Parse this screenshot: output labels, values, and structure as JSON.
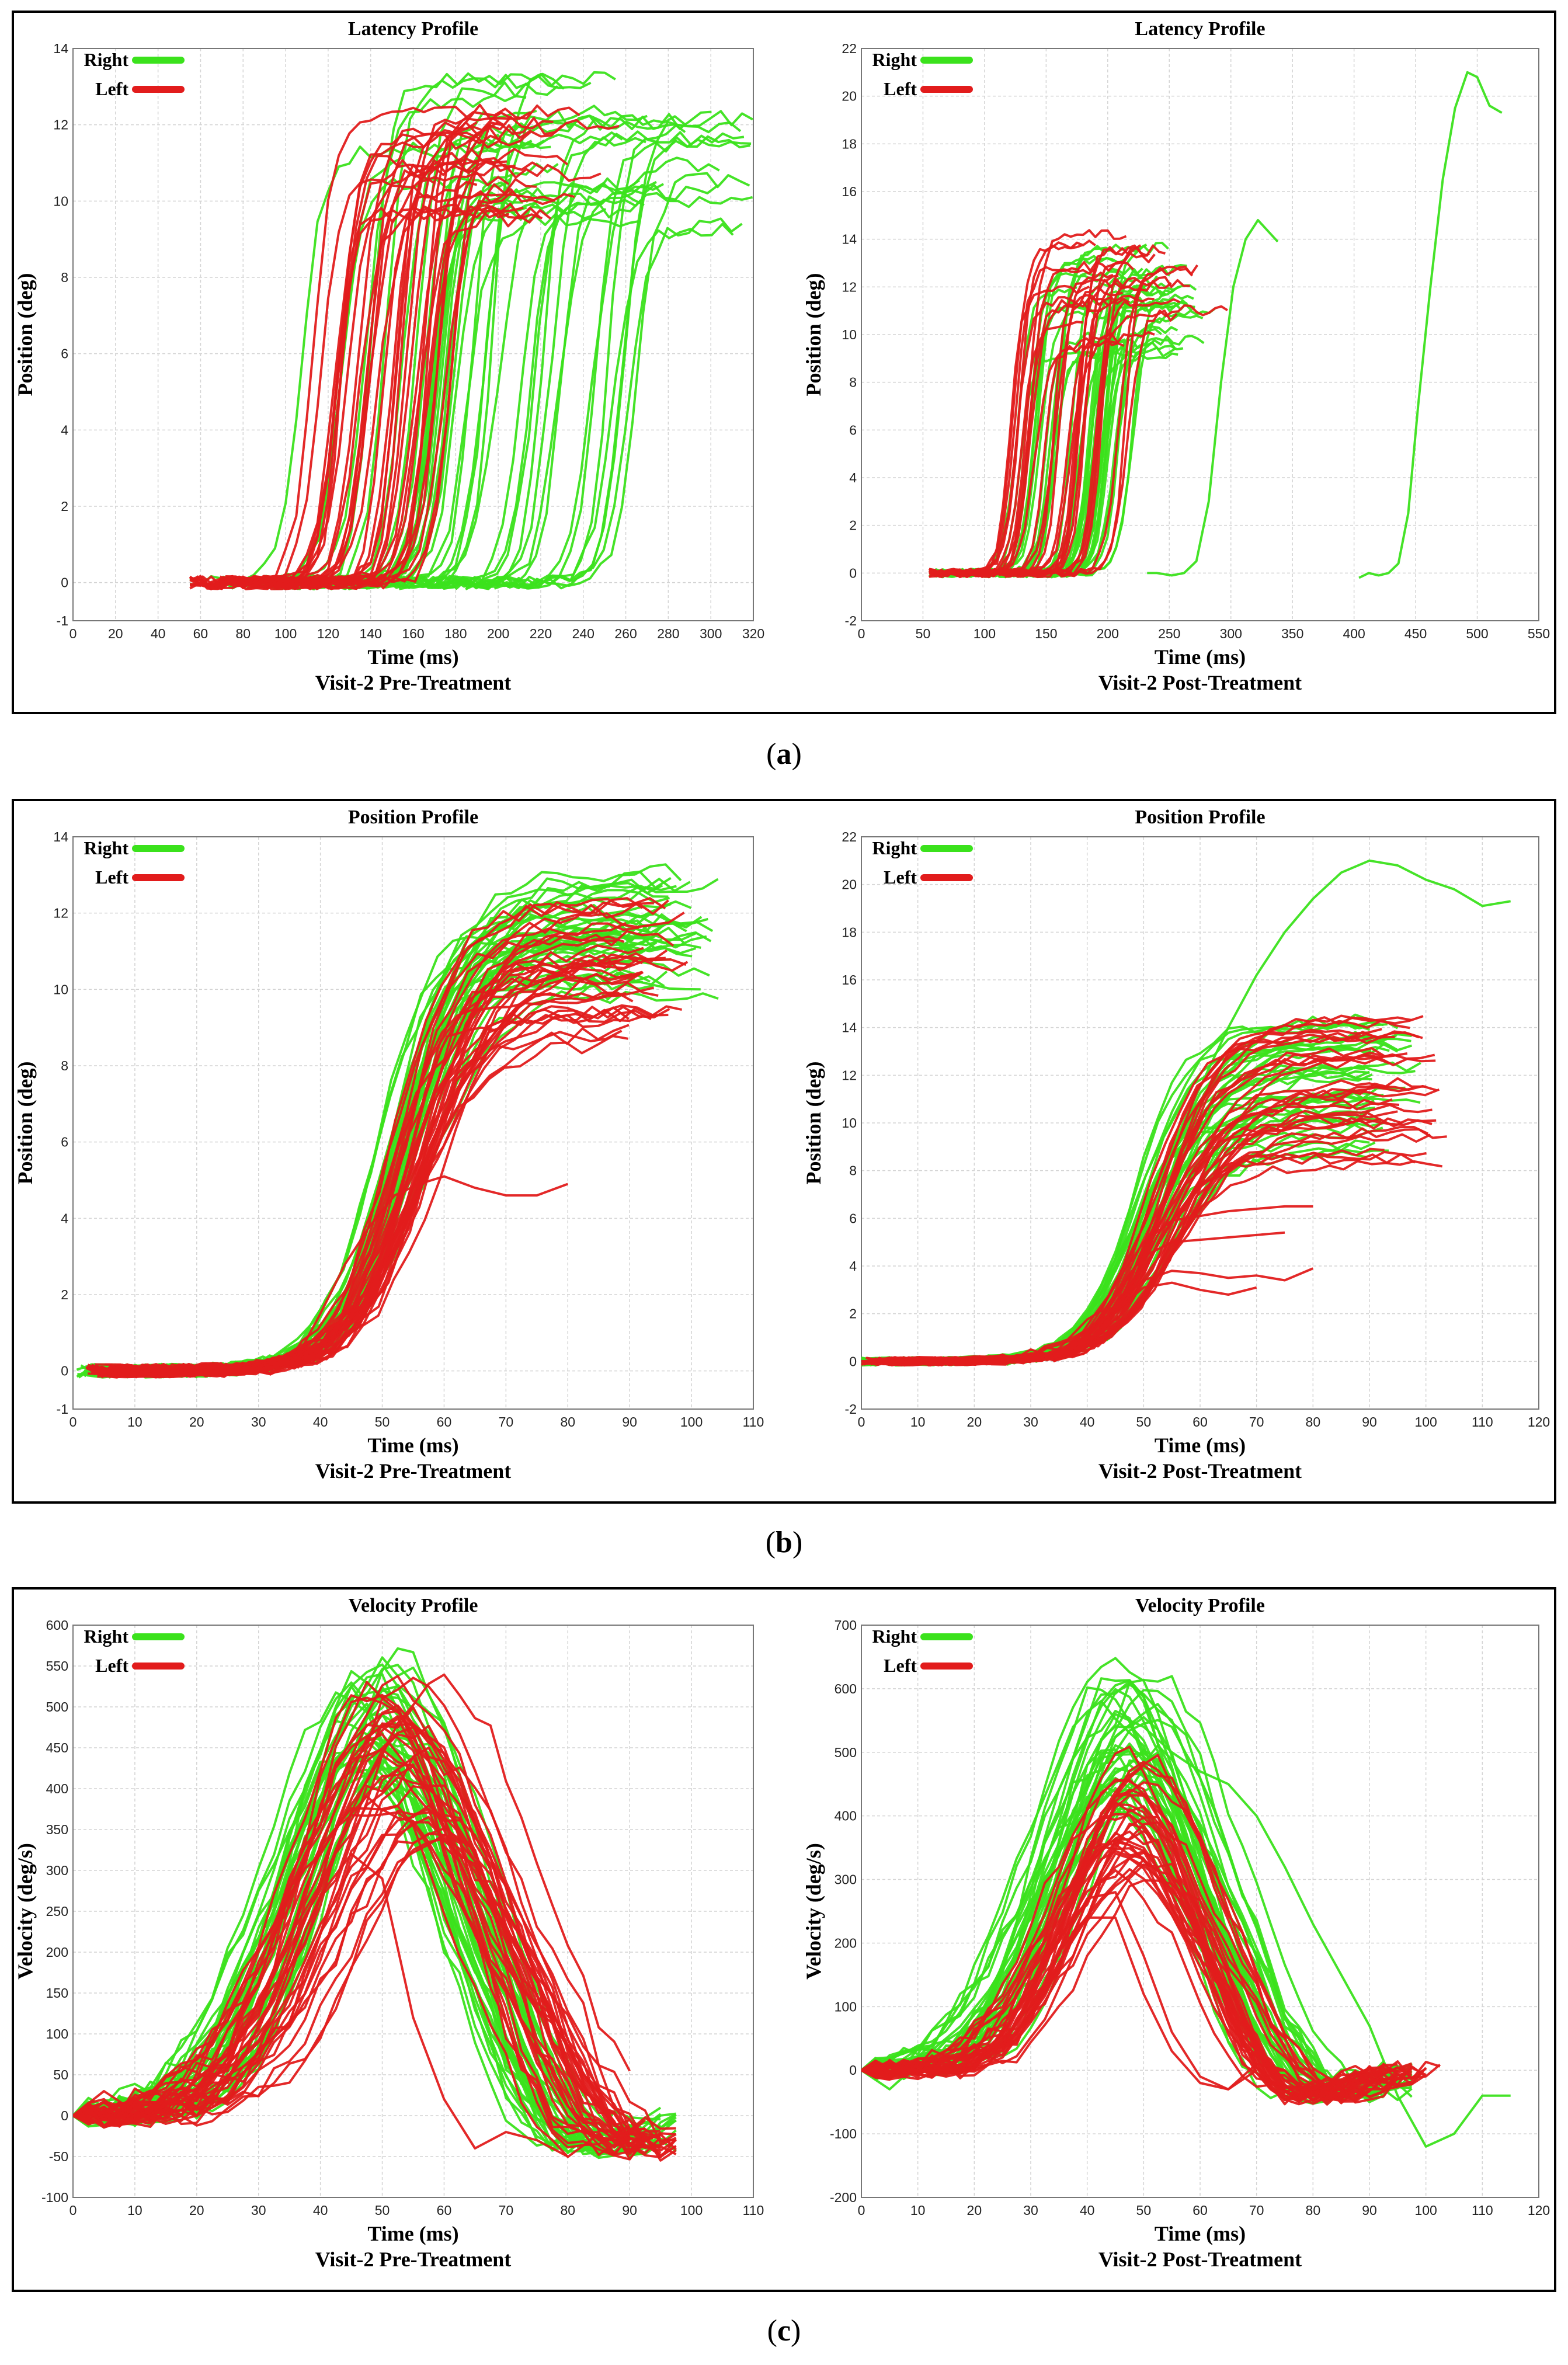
{
  "panels": [
    {
      "id": "a",
      "label": "a"
    },
    {
      "id": "b",
      "label": "b"
    },
    {
      "id": "c",
      "label": "c"
    }
  ],
  "colors": {
    "right": "#3be21c",
    "left": "#e21c1c",
    "grid": "#d4d4d4",
    "axis": "#777777"
  },
  "chart_data": [
    {
      "panel": "a",
      "side": "left",
      "type": "line",
      "title": "Latency Profile",
      "xlabel": "Time (ms)",
      "ylabel": "Position (deg)",
      "caption": "Visit-2 Pre-Treatment",
      "xlim": [
        0,
        320
      ],
      "ylim": [
        -1,
        14
      ],
      "xticks": [
        0,
        20,
        40,
        60,
        80,
        100,
        120,
        140,
        160,
        180,
        200,
        220,
        240,
        260,
        280,
        300,
        320
      ],
      "yticks": [
        -1,
        0,
        2,
        4,
        6,
        8,
        10,
        12,
        14
      ],
      "yticklabels": [
        "-1",
        "0",
        "2",
        "4",
        "6",
        "8",
        "10",
        "12",
        "14"
      ],
      "legend": [
        {
          "name": "Right",
          "color": "right"
        },
        {
          "name": "Left",
          "color": "left"
        }
      ],
      "series": [
        {
          "name": "Right",
          "count": 42,
          "onset_range": [
            85,
            260
          ],
          "rise_ms": 34,
          "plateau_range": [
            9.2,
            13.2
          ],
          "tail_ms": 60,
          "baseline": 0
        },
        {
          "name": "Left",
          "count": 34,
          "onset_range": [
            90,
            165
          ],
          "rise_ms": 32,
          "plateau_range": [
            9.5,
            12.4
          ],
          "tail_ms": 50,
          "baseline": 0
        }
      ]
    },
    {
      "panel": "a",
      "side": "right",
      "type": "line",
      "title": "Latency Profile",
      "xlabel": "Time (ms)",
      "ylabel": "Position (deg)",
      "caption": "Visit-2 Post-Treatment",
      "xlim": [
        0,
        550
      ],
      "ylim": [
        -2,
        22
      ],
      "xticks": [
        0,
        50,
        100,
        150,
        200,
        250,
        300,
        350,
        400,
        450,
        500,
        550
      ],
      "yticks": [
        -2,
        0,
        2,
        4,
        6,
        8,
        10,
        12,
        14,
        16,
        18,
        20,
        22
      ],
      "yticklabels": [
        "-2",
        "0",
        "2",
        "4",
        "6",
        "8",
        "10",
        "12",
        "14",
        "16",
        "18",
        "20",
        "22"
      ],
      "legend": [
        {
          "name": "Right",
          "color": "right"
        },
        {
          "name": "Left",
          "color": "left"
        }
      ],
      "series": [
        {
          "name": "Right",
          "count": 38,
          "onset_range": [
            105,
            205
          ],
          "rise_ms": 38,
          "plateau_range": [
            9.0,
            13.8
          ],
          "tail_ms": 45,
          "baseline": 0,
          "extra": [
            {
              "x": [
                232,
                240,
                252,
                262,
                272,
                282,
                292,
                302,
                312,
                322,
                338
              ],
              "y": [
                0,
                0,
                -0.1,
                0,
                0.5,
                3,
                8,
                12,
                14,
                14.8,
                13.9
              ]
            },
            {
              "x": [
                404,
                412,
                420,
                428,
                436,
                444,
                452,
                462,
                472,
                482,
                492,
                500,
                510,
                520
              ],
              "y": [
                -0.2,
                0,
                -0.1,
                0,
                0.4,
                2.5,
                7,
                12,
                16.5,
                19.5,
                21,
                20.8,
                19.6,
                19.3
              ]
            }
          ]
        },
        {
          "name": "Left",
          "count": 30,
          "onset_range": [
            100,
            200
          ],
          "rise_ms": 36,
          "plateau_range": [
            9.5,
            14.4
          ],
          "tail_ms": 45,
          "baseline": 0
        }
      ]
    },
    {
      "panel": "b",
      "side": "left",
      "type": "line",
      "title": "Position Profile",
      "xlabel": "Time (ms)",
      "ylabel": "Position (deg)",
      "caption": "Visit-2 Pre-Treatment",
      "xlim": [
        0,
        110
      ],
      "ylim": [
        -1,
        14
      ],
      "xticks": [
        0,
        10,
        20,
        30,
        40,
        50,
        60,
        70,
        80,
        90,
        100,
        110
      ],
      "yticks": [
        -1,
        0,
        2,
        4,
        6,
        8,
        10,
        12,
        14
      ],
      "yticklabels": [
        "-1",
        "0",
        "2",
        "4",
        "6",
        "8",
        "10",
        "12",
        "14"
      ],
      "legend": [
        {
          "name": "Right",
          "color": "right"
        },
        {
          "name": "Left",
          "color": "left"
        }
      ],
      "series": [
        {
          "name": "Right",
          "count": 40,
          "onset_range": [
            32,
            37
          ],
          "rise_ms": 36,
          "plateau_range": [
            9.6,
            13.1
          ],
          "end_range": [
            92,
            105
          ],
          "baseline": 0
        },
        {
          "name": "Left",
          "count": 36,
          "onset_range": [
            34,
            39
          ],
          "rise_ms": 37,
          "plateau_range": [
            8.5,
            12.3
          ],
          "end_range": [
            88,
            100
          ],
          "baseline": 0,
          "extra": [
            {
              "x": [
                33,
                36,
                40,
                44,
                48,
                52,
                56,
                60,
                65,
                70,
                75,
                80
              ],
              "y": [
                0,
                0.3,
                1.5,
                2.8,
                3.8,
                4.6,
                4.9,
                5.1,
                4.8,
                4.6,
                4.6,
                4.9
              ]
            }
          ]
        }
      ]
    },
    {
      "panel": "b",
      "side": "right",
      "type": "line",
      "title": "Position Profile",
      "xlabel": "Time (ms)",
      "ylabel": "Position (deg)",
      "caption": "Visit-2 Post-Treatment",
      "xlim": [
        0,
        120
      ],
      "ylim": [
        -2,
        22
      ],
      "xticks": [
        0,
        10,
        20,
        30,
        40,
        50,
        60,
        70,
        80,
        90,
        100,
        110,
        120
      ],
      "yticks": [
        -2,
        0,
        2,
        4,
        6,
        8,
        10,
        12,
        14,
        16,
        18,
        20,
        22
      ],
      "yticklabels": [
        "-2",
        "0",
        "2",
        "4",
        "6",
        "8",
        "10",
        "12",
        "14",
        "16",
        "18",
        "20",
        "22"
      ],
      "legend": [
        {
          "name": "Right",
          "color": "right"
        },
        {
          "name": "Left",
          "color": "left"
        }
      ],
      "series": [
        {
          "name": "Right",
          "count": 38,
          "onset_range": [
            30,
            36
          ],
          "rise_ms": 38,
          "plateau_range": [
            8.5,
            14.5
          ],
          "end_range": [
            90,
            100
          ],
          "baseline": 0,
          "extra": [
            {
              "x": [
                30,
                35,
                40,
                45,
                50,
                55,
                60,
                65,
                70,
                75,
                80,
                85,
                90,
                95,
                100,
                105,
                110,
                115
              ],
              "y": [
                0,
                0.4,
                2,
                4,
                6.5,
                9,
                11.5,
                14,
                16.2,
                18,
                19.4,
                20.5,
                21,
                20.8,
                20.2,
                19.8,
                19.1,
                19.3
              ]
            }
          ]
        },
        {
          "name": "Left",
          "count": 34,
          "onset_range": [
            31,
            37
          ],
          "rise_ms": 38,
          "plateau_range": [
            8.2,
            14.4
          ],
          "end_range": [
            92,
            105
          ],
          "baseline": 0,
          "extra": [
            {
              "x": [
                34,
                38,
                42,
                46,
                50,
                55,
                60,
                65,
                70,
                75,
                80
              ],
              "y": [
                0,
                0.6,
                2,
                3.6,
                5,
                5.9,
                6.1,
                6.3,
                6.4,
                6.5,
                6.5
              ]
            },
            {
              "x": [
                34,
                38,
                42,
                46,
                50,
                55,
                60,
                65,
                70,
                75
              ],
              "y": [
                0,
                0.5,
                1.8,
                3.2,
                4.4,
                5,
                5.1,
                5.2,
                5.3,
                5.4
              ]
            },
            {
              "x": [
                34,
                38,
                42,
                46,
                50,
                55,
                60,
                65,
                70,
                75,
                80
              ],
              "y": [
                0,
                0.5,
                1.5,
                2.6,
                3.4,
                3.8,
                3.7,
                3.5,
                3.6,
                3.4,
                3.9
              ]
            },
            {
              "x": [
                34,
                38,
                42,
                46,
                50,
                55,
                60,
                65,
                70
              ],
              "y": [
                0,
                0.4,
                1.3,
                2.3,
                3.1,
                3.3,
                3.0,
                2.8,
                3.1
              ]
            }
          ]
        }
      ]
    },
    {
      "panel": "c",
      "side": "left",
      "type": "line",
      "title": "Velocity Profile",
      "xlabel": "Time (ms)",
      "ylabel": "Velocity (deg/s)",
      "caption": "Visit-2 Pre-Treatment",
      "xlim": [
        0,
        110
      ],
      "ylim": [
        -100,
        600
      ],
      "xticks": [
        0,
        10,
        20,
        30,
        40,
        50,
        60,
        70,
        80,
        90,
        100,
        110
      ],
      "yticks": [
        -100,
        -50,
        0,
        50,
        100,
        150,
        200,
        250,
        300,
        350,
        400,
        450,
        500,
        550,
        600
      ],
      "yticklabels": [
        "-100",
        "-50",
        "0",
        "50",
        "100",
        "150",
        "200",
        "250",
        "300",
        "350",
        "400",
        "450",
        "500",
        "550",
        "600"
      ],
      "legend": [
        {
          "name": "Right",
          "color": "right"
        },
        {
          "name": "Left",
          "color": "left"
        }
      ],
      "series": [
        {
          "name": "Right",
          "count": 40,
          "peak_time_range": [
            44,
            55
          ],
          "peak_range": [
            400,
            570
          ],
          "width_ms": 13,
          "onset_range": [
            24,
            29
          ],
          "end_range": [
            90,
            100
          ],
          "baseline": 0
        },
        {
          "name": "Left",
          "count": 36,
          "peak_time_range": [
            48,
            60
          ],
          "peak_range": [
            330,
            535
          ],
          "width_ms": 14,
          "onset_range": [
            25,
            30
          ],
          "end_range": [
            88,
            100
          ],
          "baseline": 0,
          "extra": [
            {
              "x": [
                0,
                5,
                10,
                15,
                20,
                25,
                30,
                35,
                40,
                45,
                50,
                55,
                60,
                65,
                70,
                75,
                80
              ],
              "y": [
                0,
                30,
                5,
                -10,
                0,
                20,
                80,
                180,
                270,
                320,
                290,
                120,
                20,
                -40,
                -20,
                -30,
                -50
              ]
            }
          ]
        }
      ]
    },
    {
      "panel": "c",
      "side": "right",
      "type": "line",
      "title": "Velocity Profile",
      "xlabel": "Time (ms)",
      "ylabel": "Velocity (deg/s)",
      "caption": "Visit-2 Post-Treatment",
      "xlim": [
        0,
        120
      ],
      "ylim": [
        -200,
        700
      ],
      "xticks": [
        0,
        10,
        20,
        30,
        40,
        50,
        60,
        70,
        80,
        90,
        100,
        110,
        120
      ],
      "yticks": [
        -200,
        -100,
        0,
        100,
        200,
        300,
        400,
        500,
        600,
        700
      ],
      "yticklabels": [
        "-200",
        "-100",
        "0",
        "100",
        "200",
        "300",
        "400",
        "500",
        "600",
        "700"
      ],
      "legend": [
        {
          "name": "Right",
          "color": "right"
        },
        {
          "name": "Left",
          "color": "left"
        }
      ],
      "series": [
        {
          "name": "Right",
          "count": 38,
          "peak_time_range": [
            42,
            52
          ],
          "peak_range": [
            400,
            640
          ],
          "width_ms": 13,
          "onset_range": [
            24,
            28
          ],
          "end_range": [
            90,
            100
          ],
          "baseline": 0,
          "extra": [
            {
              "x": [
                0,
                5,
                10,
                15,
                20,
                25,
                30,
                35,
                40,
                45,
                50,
                55,
                60,
                65,
                70,
                75,
                80,
                85,
                90,
                95,
                100,
                105,
                110,
                115
              ],
              "y": [
                0,
                -30,
                10,
                0,
                10,
                30,
                120,
                300,
                480,
                560,
                540,
                500,
                470,
                450,
                400,
                320,
                230,
                150,
                70,
                -40,
                -120,
                -100,
                -40,
                -40
              ]
            }
          ]
        },
        {
          "name": "Left",
          "count": 34,
          "peak_time_range": [
            44,
            52
          ],
          "peak_range": [
            300,
            500
          ],
          "width_ms": 12,
          "onset_range": [
            25,
            29
          ],
          "end_range": [
            90,
            105
          ],
          "baseline": 0,
          "extra": [
            {
              "x": [
                0,
                5,
                10,
                15,
                20,
                25,
                30,
                35,
                40,
                45,
                50,
                55,
                60,
                65,
                70,
                75
              ],
              "y": [
                0,
                10,
                0,
                -10,
                0,
                20,
                80,
                170,
                240,
                240,
                120,
                30,
                -20,
                -30,
                10,
                0
              ]
            },
            {
              "x": [
                0,
                5,
                10,
                15,
                20,
                25,
                30,
                35,
                40,
                45,
                50,
                55,
                60,
                65,
                70
              ],
              "y": [
                0,
                5,
                0,
                -5,
                5,
                25,
                90,
                190,
                270,
                280,
                180,
                60,
                -10,
                -30,
                0
              ]
            }
          ]
        }
      ]
    }
  ]
}
